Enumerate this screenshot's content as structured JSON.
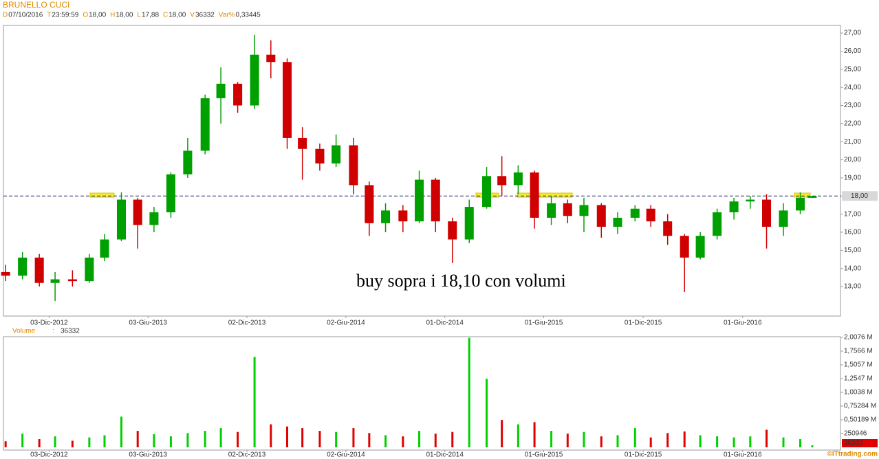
{
  "header": {
    "title": "BRUNELLO CUCI",
    "items": [
      {
        "key": "D",
        "value": "07/10/2016"
      },
      {
        "key": "T",
        "value": "23:59:59"
      },
      {
        "key": "O",
        "value": "18,00"
      },
      {
        "key": "H",
        "value": "18,00"
      },
      {
        "key": "L",
        "value": "17,88"
      },
      {
        "key": "C",
        "value": "18,00"
      },
      {
        "key": "V",
        "value": "36332"
      },
      {
        "key": "Var%",
        "value": "0,33445"
      }
    ],
    "volume_label": "Volume",
    "volume_sep": ":",
    "volume_value": "36332",
    "copyright": "©ITtrading.com"
  },
  "chart_data": [
    {
      "type": "candlestick",
      "annotation": "buy sopra i 18,10 con volumi",
      "up_color": "#00a000",
      "down_color": "#d00000",
      "hline": {
        "value": 18,
        "label": "18,00"
      },
      "xlim": [
        "2012-09-10",
        "2016-11-28"
      ],
      "xticks": [
        {
          "value": "2012-12-03",
          "label": "03-Dic-2012"
        },
        {
          "value": "2013-06-03",
          "label": "03-Giu-2013"
        },
        {
          "value": "2013-12-02",
          "label": "02-Dic-2013"
        },
        {
          "value": "2014-06-02",
          "label": "02-Giu-2014"
        },
        {
          "value": "2014-12-01",
          "label": "01-Dic-2014"
        },
        {
          "value": "2015-06-01",
          "label": "01-Giu-2015"
        },
        {
          "value": "2015-12-01",
          "label": "01-Dic-2015"
        },
        {
          "value": "2016-06-01",
          "label": "01-Giu-2016"
        }
      ],
      "ylim": [
        11.37,
        27.42
      ],
      "yticks": [
        {
          "value": 13,
          "label": "13,00"
        },
        {
          "value": 14,
          "label": "14,00"
        },
        {
          "value": 15,
          "label": "15,00"
        },
        {
          "value": 16,
          "label": "16,00"
        },
        {
          "value": 17,
          "label": "17,00"
        },
        {
          "value": 18,
          "label": "18,00"
        },
        {
          "value": 19,
          "label": "19,00"
        },
        {
          "value": 20,
          "label": "20,00"
        },
        {
          "value": 21,
          "label": "21,00"
        },
        {
          "value": 22,
          "label": "22,00"
        },
        {
          "value": 23,
          "label": "23,00"
        },
        {
          "value": 24,
          "label": "24,00"
        },
        {
          "value": 25,
          "label": "25,00"
        },
        {
          "value": 26,
          "label": "26,00"
        },
        {
          "value": 27,
          "label": "27,00"
        }
      ],
      "x": [
        "2012-09-14",
        "2012-10-15",
        "2012-11-15",
        "2012-12-14",
        "2013-01-15",
        "2013-02-15",
        "2013-03-15",
        "2013-04-15",
        "2013-05-15",
        "2013-06-14",
        "2013-07-15",
        "2013-08-15",
        "2013-09-16",
        "2013-10-15",
        "2013-11-15",
        "2013-12-16",
        "2014-01-15",
        "2014-02-14",
        "2014-03-14",
        "2014-04-15",
        "2014-05-15",
        "2014-06-16",
        "2014-07-15",
        "2014-08-14",
        "2014-09-15",
        "2014-10-15",
        "2014-11-14",
        "2014-12-15",
        "2015-01-15",
        "2015-02-16",
        "2015-03-16",
        "2015-04-15",
        "2015-05-15",
        "2015-06-15",
        "2015-07-15",
        "2015-08-14",
        "2015-09-15",
        "2015-10-15",
        "2015-11-16",
        "2015-12-15",
        "2016-01-15",
        "2016-02-15",
        "2016-03-15",
        "2016-04-15",
        "2016-05-16",
        "2016-06-15",
        "2016-07-15",
        "2016-08-15",
        "2016-09-15",
        "2016-10-07"
      ],
      "open": [
        13.8,
        13.6,
        14.6,
        13.2,
        13.4,
        13.3,
        14.6,
        15.6,
        17.8,
        16.4,
        17.1,
        19.2,
        20.5,
        23.4,
        24.2,
        23.0,
        25.8,
        25.4,
        21.2,
        20.6,
        19.8,
        20.8,
        18.6,
        16.5,
        17.2,
        16.6,
        18.9,
        16.6,
        15.6,
        17.4,
        19.1,
        18.6,
        19.3,
        16.8,
        17.6,
        16.9,
        17.5,
        16.3,
        16.8,
        17.3,
        16.6,
        15.8,
        14.6,
        15.8,
        17.1,
        17.7,
        17.8,
        16.3,
        17.2,
        17.9
      ],
      "high": [
        14.2,
        14.9,
        14.8,
        13.8,
        13.9,
        14.8,
        15.9,
        18.2,
        17.9,
        17.4,
        19.3,
        21.2,
        23.6,
        25.1,
        24.3,
        26.9,
        26.6,
        25.6,
        21.8,
        20.9,
        21.4,
        21.2,
        18.8,
        17.6,
        17.5,
        19.4,
        19.0,
        16.8,
        17.8,
        19.6,
        20.2,
        19.7,
        19.4,
        18.0,
        17.8,
        17.9,
        17.6,
        17.1,
        17.5,
        17.5,
        17.0,
        15.9,
        16.0,
        17.3,
        17.9,
        18.0,
        18.1,
        17.6,
        18.2,
        18.0
      ],
      "low": [
        13.3,
        13.4,
        13.0,
        12.2,
        13.0,
        13.2,
        14.4,
        15.5,
        15.1,
        16.0,
        16.8,
        19.0,
        20.3,
        22.0,
        22.6,
        22.8,
        24.5,
        20.6,
        18.9,
        19.4,
        19.6,
        18.1,
        15.8,
        16.0,
        16.0,
        16.5,
        16.0,
        14.3,
        15.4,
        17.3,
        18.0,
        18.1,
        16.2,
        16.4,
        16.5,
        16.0,
        15.7,
        15.9,
        16.6,
        16.3,
        15.3,
        12.7,
        14.5,
        15.6,
        16.7,
        17.3,
        15.1,
        15.8,
        17.0,
        17.88
      ],
      "close": [
        13.6,
        14.6,
        13.2,
        13.4,
        13.3,
        14.6,
        15.6,
        17.8,
        16.4,
        17.1,
        19.2,
        20.5,
        23.4,
        24.2,
        23.0,
        25.8,
        25.4,
        21.2,
        20.6,
        19.8,
        20.8,
        18.6,
        16.5,
        17.2,
        16.6,
        18.9,
        16.6,
        15.6,
        17.4,
        19.1,
        18.6,
        19.3,
        16.8,
        17.6,
        16.9,
        17.5,
        16.3,
        16.8,
        17.3,
        16.6,
        15.8,
        14.6,
        15.8,
        17.1,
        17.7,
        17.8,
        16.3,
        17.2,
        17.9,
        18.0
      ]
    },
    {
      "type": "bar",
      "up_color": "#00d000",
      "down_color": "#e00000",
      "last_value": 36332,
      "xlim": [
        "2012-09-10",
        "2016-11-28"
      ],
      "xticks": [
        {
          "value": "2012-12-03",
          "label": "03-Dic-2012"
        },
        {
          "value": "2013-06-03",
          "label": "03-Giu-2013"
        },
        {
          "value": "2013-12-02",
          "label": "02-Dic-2013"
        },
        {
          "value": "2014-06-02",
          "label": "02-Giu-2014"
        },
        {
          "value": "2014-12-01",
          "label": "01-Dic-2014"
        },
        {
          "value": "2015-06-01",
          "label": "01-Giu-2015"
        },
        {
          "value": "2015-12-01",
          "label": "01-Dic-2015"
        },
        {
          "value": "2016-06-01",
          "label": "01-Giu-2016"
        }
      ],
      "ylim": [
        -50189,
        2020116
      ],
      "yticks": [
        {
          "value": 2007568,
          "label": "2,0076 M"
        },
        {
          "value": 1756622,
          "label": "1,7566 M"
        },
        {
          "value": 1505676,
          "label": "1,5057 M"
        },
        {
          "value": 1254730,
          "label": "1,2547 M"
        },
        {
          "value": 1003784,
          "label": "1,0038 M"
        },
        {
          "value": 752838,
          "label": "0,75284 M"
        },
        {
          "value": 501892,
          "label": "0,50189 M"
        },
        250946
      ],
      "x": [
        "2012-09-14",
        "2012-10-15",
        "2012-11-15",
        "2012-12-14",
        "2013-01-15",
        "2013-02-15",
        "2013-03-15",
        "2013-04-15",
        "2013-05-15",
        "2013-06-14",
        "2013-07-15",
        "2013-08-15",
        "2013-09-16",
        "2013-10-15",
        "2013-11-15",
        "2013-12-16",
        "2014-01-15",
        "2014-02-14",
        "2014-03-14",
        "2014-04-15",
        "2014-05-15",
        "2014-06-16",
        "2014-07-15",
        "2014-08-14",
        "2014-09-15",
        "2014-10-15",
        "2014-11-14",
        "2014-12-15",
        "2015-01-15",
        "2015-02-16",
        "2015-03-16",
        "2015-04-15",
        "2015-05-15",
        "2015-06-15",
        "2015-07-15",
        "2015-08-14",
        "2015-09-15",
        "2015-10-15",
        "2015-11-16",
        "2015-12-15",
        "2016-01-15",
        "2016-02-15",
        "2016-03-15",
        "2016-04-15",
        "2016-05-16",
        "2016-06-15",
        "2016-07-15",
        "2016-08-15",
        "2016-09-15",
        "2016-10-07"
      ],
      "values": [
        110000,
        250000,
        150000,
        200000,
        120000,
        180000,
        220000,
        560000,
        300000,
        240000,
        200000,
        260000,
        300000,
        350000,
        280000,
        1650000,
        420000,
        380000,
        350000,
        300000,
        280000,
        350000,
        260000,
        220000,
        200000,
        300000,
        250000,
        280000,
        2000000,
        1250000,
        500000,
        420000,
        460000,
        300000,
        250000,
        280000,
        200000,
        220000,
        350000,
        180000,
        260000,
        290000,
        220000,
        200000,
        180000,
        200000,
        320000,
        180000,
        150000,
        36332
      ]
    }
  ]
}
